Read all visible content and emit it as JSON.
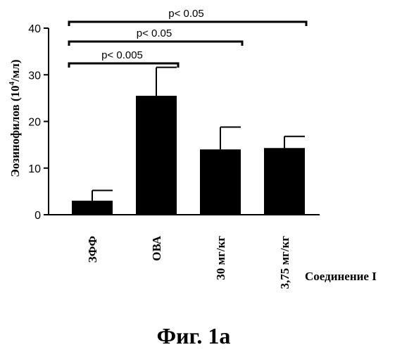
{
  "chart_data": {
    "type": "bar",
    "title": "",
    "ylabel": "Эозинофилов (10",
    "ylabel_sup": "4",
    "ylabel_unit": "/мл)",
    "xlabel": "Соединение I",
    "categories": [
      "ЗФФ",
      "ОВА",
      "30 мг/кг",
      "3,75 мг/кг"
    ],
    "values": [
      3,
      25.5,
      14,
      14.3
    ],
    "errors": [
      2.2,
      6.1,
      4.8,
      2.5
    ],
    "ylim": [
      0,
      40
    ],
    "yticks": [
      "0",
      "10",
      "20",
      "30",
      "40"
    ],
    "ytick_values": [
      0,
      10,
      20,
      30,
      40
    ],
    "bar_color": "#000000",
    "grid": false,
    "significance": [
      {
        "from": 0,
        "to": 1,
        "label": "p< 0.005"
      },
      {
        "from": 0,
        "to": 2,
        "label": "p< 0.05"
      },
      {
        "from": 0,
        "to": 3,
        "label": "p< 0.05"
      }
    ]
  },
  "caption": "Фиг. 1а"
}
